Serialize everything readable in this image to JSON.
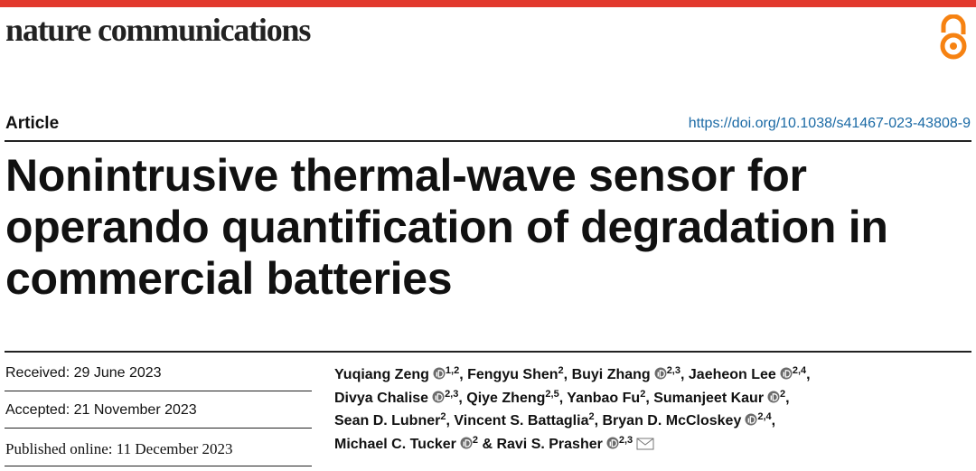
{
  "header": {
    "journal": "nature communications"
  },
  "article_type": "Article",
  "doi": "https://doi.org/10.1038/s41467-023-43808-9",
  "title_lines": [
    "Nonintrusive thermal-wave sensor for",
    "operando quantification of degradation in",
    "commercial batteries"
  ],
  "dates": [
    "Received: 29 June 2023",
    "Accepted: 21 November 2023",
    "Published online: 11 December 2023"
  ],
  "separator": ",",
  "conjunction": "&",
  "author_lines": [
    [
      {
        "name": "Yuqiang Zeng",
        "orcid": true,
        "aff": "1,2"
      },
      {
        "name": "Fengyu Shen",
        "orcid": false,
        "aff": "2"
      },
      {
        "name": "Buyi Zhang",
        "orcid": true,
        "aff": "2,3"
      },
      {
        "name": "Jaeheon Lee",
        "orcid": true,
        "aff": "2,4"
      }
    ],
    [
      {
        "name": "Divya Chalise",
        "orcid": true,
        "aff": "2,3"
      },
      {
        "name": "Qiye Zheng",
        "orcid": false,
        "aff": "2,5"
      },
      {
        "name": "Yanbao Fu",
        "orcid": false,
        "aff": "2"
      },
      {
        "name": "Sumanjeet Kaur",
        "orcid": true,
        "aff": "2"
      }
    ],
    [
      {
        "name": "Sean D. Lubner",
        "orcid": false,
        "aff": "2"
      },
      {
        "name": "Vincent S. Battaglia",
        "orcid": false,
        "aff": "2"
      },
      {
        "name": "Bryan D. McCloskey",
        "orcid": true,
        "aff": "2,4"
      }
    ],
    [
      {
        "name": "Michael C. Tucker",
        "orcid": true,
        "aff": "2"
      },
      {
        "name": "Ravi S. Prasher",
        "orcid": true,
        "aff": "2,3"
      }
    ]
  ]
}
